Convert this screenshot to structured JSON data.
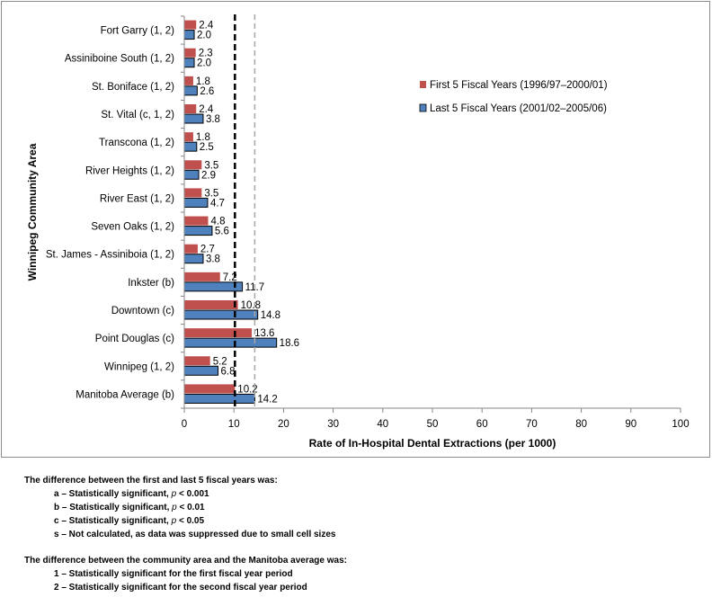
{
  "chart_data": {
    "type": "bar",
    "orientation": "horizontal",
    "categories": [
      "Fort Garry (1, 2)",
      "Assiniboine South (1, 2)",
      "St. Boniface (1, 2)",
      "St. Vital (c, 1, 2)",
      "Transcona (1, 2)",
      "River Heights (1, 2)",
      "River East (1, 2)",
      "Seven Oaks (1, 2)",
      "St. James - Assiniboia (1, 2)",
      "Inkster (b)",
      "Downtown (c)",
      "Point Douglas (c)",
      "Winnipeg (1, 2)",
      "Manitoba Average (b)"
    ],
    "series": [
      {
        "name": "First 5 Fiscal Years (1996/97–2000/01)",
        "color": "#c0504d",
        "values": [
          2.4,
          2.3,
          1.8,
          2.4,
          1.8,
          3.5,
          3.5,
          4.8,
          2.7,
          7.2,
          10.8,
          13.6,
          5.2,
          10.2
        ]
      },
      {
        "name": "Last 5 Fiscal Years (2001/02–2005/06)",
        "color": "#4f81bd",
        "values": [
          2.0,
          2.0,
          2.6,
          3.8,
          2.5,
          2.9,
          4.7,
          5.6,
          3.8,
          11.7,
          14.8,
          18.6,
          6.8,
          14.2
        ]
      }
    ],
    "reference_lines": [
      {
        "value": 10.2,
        "style": "dashed",
        "color": "#000000"
      },
      {
        "value": 14.2,
        "style": "dashed",
        "color": "#a6a6a6"
      }
    ],
    "xlabel": "Rate of In-Hospital Dental Extractions (per 1000)",
    "ylabel": "Winnipeg Community Area",
    "xlim": [
      0,
      100
    ],
    "xticks": [
      "0",
      "10",
      "20",
      "30",
      "40",
      "50",
      "60",
      "70",
      "80",
      "90",
      "100"
    ],
    "grid": false,
    "legend_position": "right"
  },
  "notes": {
    "intro1": "The difference between the first and last 5 fiscal years was:",
    "a_text": "a – Statistically significant, ",
    "a_p": "p",
    "a_tail": " < 0.001",
    "b_text": "b – Statistically significant, ",
    "b_p": "p",
    "b_tail": " < 0.01",
    "c_text": "c – Statistically significant, ",
    "c_p": "p",
    "c_tail": " < 0.05",
    "s_text": "s – Not calculated, as data was suppressed due to small cell sizes",
    "intro2": "The difference between the community area and the Manitoba average was:",
    "n1": "1 – Statistically significant for the first fiscal year period",
    "n2": "2 – Statistically significant for the second fiscal year period"
  }
}
